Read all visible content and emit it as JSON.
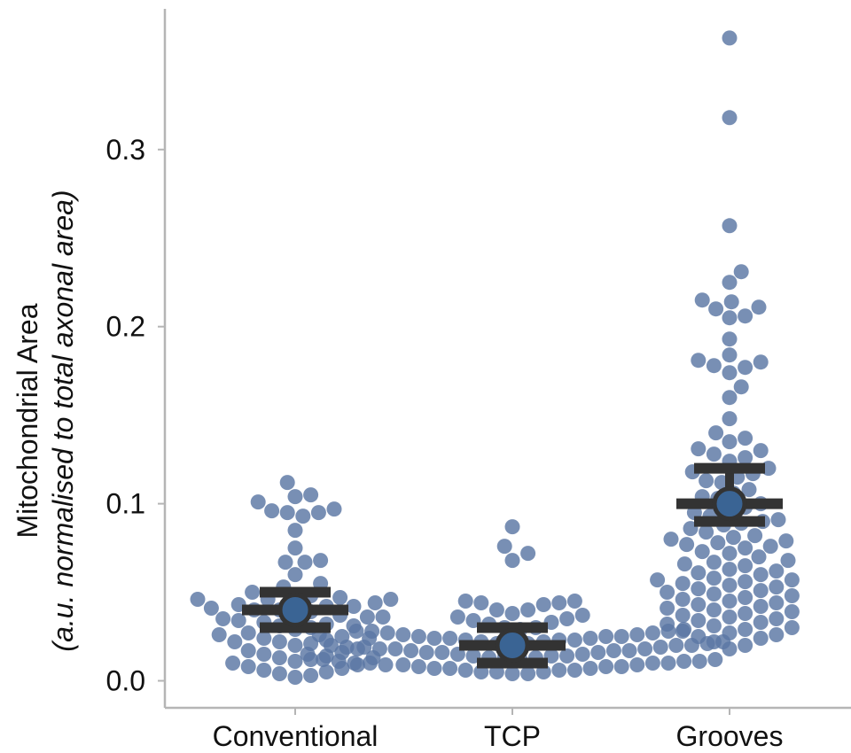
{
  "chart_data": {
    "type": "scatter",
    "subtype": "beeswarm",
    "ylabel": "Mitochondrial Area",
    "ylabel_sub": "(a.u. normalised to total axonal area)",
    "ylim": [
      -0.015,
      0.38
    ],
    "yticks": [
      "0.0",
      "0.1",
      "0.2",
      "0.3"
    ],
    "categories": [
      "Conventional",
      "TCP",
      "Grooves"
    ],
    "point_color": "#5a76a3",
    "mean_color": "#3a6494",
    "bar_color": "#333333",
    "axis_color": "#b5b5b5",
    "groups": [
      {
        "name": "Conventional",
        "mean": 0.04,
        "err_low": 0.03,
        "err_high": 0.05,
        "values": [
          0.112,
          0.105,
          0.104,
          0.101,
          0.097,
          0.096,
          0.095,
          0.095,
          0.093,
          0.085,
          0.075,
          0.068,
          0.067,
          0.067,
          0.06,
          0.055,
          0.053,
          0.05,
          0.048,
          0.047,
          0.047,
          0.046,
          0.046,
          0.046,
          0.044,
          0.043,
          0.042,
          0.042,
          0.041,
          0.04,
          0.04,
          0.039,
          0.038,
          0.037,
          0.036,
          0.036,
          0.035,
          0.034,
          0.033,
          0.032,
          0.031,
          0.031,
          0.03,
          0.029,
          0.027,
          0.026,
          0.025,
          0.024,
          0.024,
          0.023,
          0.022,
          0.022,
          0.021,
          0.02,
          0.018,
          0.017,
          0.016,
          0.015,
          0.014,
          0.013,
          0.013,
          0.012,
          0.011,
          0.01,
          0.009,
          0.008,
          0.007,
          0.006,
          0.005,
          0.004,
          0.003,
          0.002
        ]
      },
      {
        "name": "TCP",
        "mean": 0.02,
        "err_low": 0.01,
        "err_high": 0.03,
        "values": [
          0.087,
          0.076,
          0.072,
          0.068,
          0.045,
          0.045,
          0.044,
          0.044,
          0.043,
          0.04,
          0.04,
          0.038,
          0.037,
          0.036,
          0.035,
          0.034,
          0.033,
          0.032,
          0.03,
          0.03,
          0.029,
          0.029,
          0.028,
          0.028,
          0.028,
          0.027,
          0.027,
          0.026,
          0.026,
          0.026,
          0.025,
          0.025,
          0.025,
          0.024,
          0.024,
          0.024,
          0.023,
          0.023,
          0.023,
          0.022,
          0.022,
          0.022,
          0.021,
          0.021,
          0.021,
          0.021,
          0.02,
          0.02,
          0.02,
          0.019,
          0.019,
          0.019,
          0.018,
          0.018,
          0.018,
          0.017,
          0.017,
          0.017,
          0.016,
          0.016,
          0.016,
          0.015,
          0.015,
          0.015,
          0.014,
          0.014,
          0.014,
          0.013,
          0.013,
          0.013,
          0.012,
          0.012,
          0.012,
          0.011,
          0.011,
          0.011,
          0.01,
          0.01,
          0.01,
          0.01,
          0.009,
          0.009,
          0.009,
          0.008,
          0.008,
          0.008,
          0.007,
          0.007,
          0.007,
          0.006,
          0.006,
          0.006,
          0.005,
          0.005,
          0.005,
          0.004,
          0.004
        ]
      },
      {
        "name": "Grooves",
        "mean": 0.1,
        "err_low": 0.09,
        "err_high": 0.12,
        "values": [
          0.363,
          0.318,
          0.257,
          0.231,
          0.225,
          0.215,
          0.214,
          0.211,
          0.21,
          0.206,
          0.205,
          0.193,
          0.184,
          0.181,
          0.18,
          0.178,
          0.177,
          0.174,
          0.166,
          0.16,
          0.148,
          0.14,
          0.137,
          0.135,
          0.131,
          0.13,
          0.128,
          0.126,
          0.124,
          0.12,
          0.118,
          0.117,
          0.115,
          0.113,
          0.112,
          0.108,
          0.106,
          0.104,
          0.103,
          0.1,
          0.098,
          0.097,
          0.095,
          0.093,
          0.091,
          0.09,
          0.089,
          0.088,
          0.086,
          0.084,
          0.082,
          0.081,
          0.08,
          0.079,
          0.078,
          0.077,
          0.076,
          0.075,
          0.073,
          0.072,
          0.07,
          0.068,
          0.067,
          0.066,
          0.065,
          0.063,
          0.062,
          0.061,
          0.06,
          0.058,
          0.057,
          0.057,
          0.056,
          0.055,
          0.054,
          0.053,
          0.052,
          0.051,
          0.05,
          0.049,
          0.048,
          0.047,
          0.046,
          0.045,
          0.044,
          0.043,
          0.042,
          0.041,
          0.04,
          0.039,
          0.038,
          0.037,
          0.036,
          0.035,
          0.034,
          0.033,
          0.032,
          0.031,
          0.03,
          0.029,
          0.028,
          0.027,
          0.026,
          0.025,
          0.024,
          0.022,
          0.02,
          0.018
        ]
      }
    ]
  }
}
